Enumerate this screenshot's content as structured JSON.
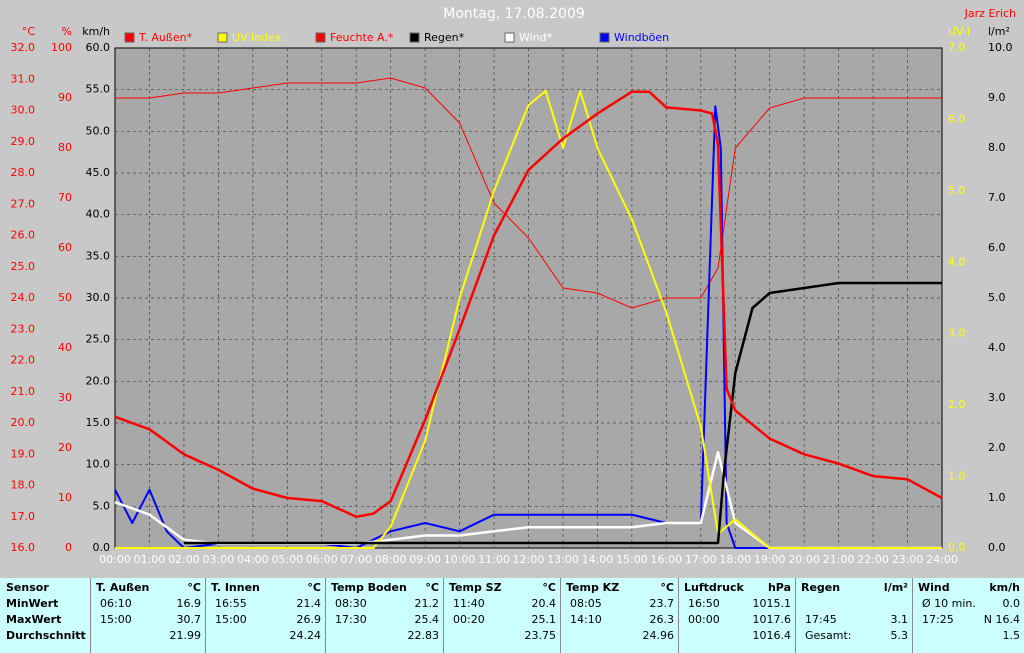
{
  "chart_data": {
    "type": "line",
    "title": "Montag, 17.08.2009",
    "author": "Jarz Erich",
    "axes": [
      {
        "unit": "°C",
        "color": "#ff0000",
        "lim": [
          16,
          32
        ],
        "ticks": [
          {
            "value": 16,
            "label": "16.0"
          },
          {
            "value": 17,
            "label": "17.0"
          },
          {
            "value": 18,
            "label": "18.0"
          },
          {
            "value": 19,
            "label": "19.0"
          },
          {
            "value": 20,
            "label": "20.0"
          },
          {
            "value": 21,
            "label": "21.0"
          },
          {
            "value": 22,
            "label": "22.0"
          },
          {
            "value": 23,
            "label": "23.0"
          },
          {
            "value": 24,
            "label": "24.0"
          },
          {
            "value": 25,
            "label": "25.0"
          },
          {
            "value": 26,
            "label": "26.0"
          },
          {
            "value": 27,
            "label": "27.0"
          },
          {
            "value": 28,
            "label": "28.0"
          },
          {
            "value": 29,
            "label": "29.0"
          },
          {
            "value": 30,
            "label": "30.0"
          },
          {
            "value": 31,
            "label": "31.0"
          },
          {
            "value": 32,
            "label": "32.0"
          }
        ]
      },
      {
        "unit": "%",
        "color": "#ff0000",
        "lim": [
          0,
          100
        ],
        "ticks": [
          0,
          10,
          20,
          30,
          40,
          50,
          60,
          70,
          80,
          90,
          100
        ]
      },
      {
        "unit": "km/h",
        "color": "#000000",
        "lim": [
          0,
          60
        ],
        "ticks": [
          {
            "value": 0,
            "label": "0.0"
          },
          {
            "value": 5,
            "label": "5.0"
          },
          {
            "value": 10,
            "label": "10.0"
          },
          {
            "value": 15,
            "label": "15.0"
          },
          {
            "value": 20,
            "label": "20.0"
          },
          {
            "value": 25,
            "label": "25.0"
          },
          {
            "value": 30,
            "label": "30.0"
          },
          {
            "value": 35,
            "label": "35.0"
          },
          {
            "value": 40,
            "label": "40.0"
          },
          {
            "value": 45,
            "label": "45.0"
          },
          {
            "value": 50,
            "label": "50.0"
          },
          {
            "value": 55,
            "label": "55.0"
          },
          {
            "value": 60,
            "label": "60.0"
          }
        ]
      },
      {
        "unit": "UV-I",
        "color": "#ffff00",
        "lim": [
          0,
          7
        ],
        "ticks": [
          {
            "value": 0,
            "label": "0.0"
          },
          {
            "value": 1,
            "label": "1.0"
          },
          {
            "value": 2,
            "label": "2.0"
          },
          {
            "value": 3,
            "label": "3.0"
          },
          {
            "value": 4,
            "label": "4.0"
          },
          {
            "value": 5,
            "label": "5.0"
          },
          {
            "value": 6,
            "label": "6.0"
          },
          {
            "value": 7,
            "label": "7.0"
          }
        ]
      },
      {
        "unit": "l/m²",
        "color": "#000000",
        "lim": [
          0,
          10
        ],
        "ticks": [
          {
            "value": 0,
            "label": "0.0"
          },
          {
            "value": 1,
            "label": "1.0"
          },
          {
            "value": 2,
            "label": "2.0"
          },
          {
            "value": 3,
            "label": "3.0"
          },
          {
            "value": 4,
            "label": "4.0"
          },
          {
            "value": 5,
            "label": "5.0"
          },
          {
            "value": 6,
            "label": "6.0"
          },
          {
            "value": 7,
            "label": "7.0"
          },
          {
            "value": 8,
            "label": "8.0"
          },
          {
            "value": 9,
            "label": "9.0"
          },
          {
            "value": 10,
            "label": "10.0"
          }
        ]
      }
    ],
    "xlim": [
      0,
      24
    ],
    "xticks": [
      {
        "value": 0,
        "label": "00:00"
      },
      {
        "value": 1,
        "label": "01:00"
      },
      {
        "value": 2,
        "label": "02:00"
      },
      {
        "value": 3,
        "label": "03:00"
      },
      {
        "value": 4,
        "label": "04:00"
      },
      {
        "value": 5,
        "label": "05:00"
      },
      {
        "value": 6,
        "label": "06:00"
      },
      {
        "value": 7,
        "label": "07:00"
      },
      {
        "value": 8,
        "label": "08:00"
      },
      {
        "value": 9,
        "label": "09:00"
      },
      {
        "value": 10,
        "label": "10:00"
      },
      {
        "value": 11,
        "label": "11:00"
      },
      {
        "value": 12,
        "label": "12:00"
      },
      {
        "value": 13,
        "label": "13:00"
      },
      {
        "value": 14,
        "label": "14:00"
      },
      {
        "value": 15,
        "label": "15:00"
      },
      {
        "value": 16,
        "label": "16:00"
      },
      {
        "value": 17,
        "label": "17:00"
      },
      {
        "value": 18,
        "label": "18:00"
      },
      {
        "value": 19,
        "label": "19:00"
      },
      {
        "value": 20,
        "label": "20:00"
      },
      {
        "value": 21,
        "label": "21:00"
      },
      {
        "value": 22,
        "label": "22:00"
      },
      {
        "value": 23,
        "label": "23:00"
      },
      {
        "value": 24,
        "label": "24:00"
      }
    ],
    "grid": true,
    "series": [
      {
        "name": "T. Außen*",
        "color": "#ff0000",
        "axis": "°C",
        "width": 2.5,
        "x": [
          0,
          1,
          2,
          3,
          4,
          5,
          6,
          7,
          7.5,
          8,
          9,
          10,
          11,
          12,
          13,
          14,
          15,
          15.5,
          16,
          17,
          17.33,
          17.5,
          17.75,
          18,
          19,
          20,
          21,
          22,
          23,
          24
        ],
        "values": [
          20.2,
          19.8,
          19,
          18.5,
          17.9,
          17.6,
          17.5,
          17,
          17.1,
          17.5,
          20.1,
          23,
          26,
          28.1,
          29.1,
          29.9,
          30.6,
          30.6,
          30.1,
          30,
          29.9,
          28.9,
          21.1,
          20.4,
          19.5,
          19,
          18.7,
          18.3,
          18.2,
          17.6
        ]
      },
      {
        "name": "UV Index",
        "color": "#ffff00",
        "axis": "UV-I",
        "width": 2,
        "x": [
          0,
          7.5,
          8,
          9,
          10,
          11,
          12,
          12.5,
          13,
          13.5,
          14,
          15,
          16,
          17,
          17.5,
          18,
          19,
          24
        ],
        "values": [
          0,
          0,
          0.3,
          1.5,
          3.5,
          5,
          6.2,
          6.4,
          5.6,
          6.4,
          5.6,
          4.6,
          3.3,
          1.7,
          0.2,
          0.4,
          0,
          0
        ]
      },
      {
        "name": "Feuchte A.*",
        "color": "#ff0000",
        "axis": "%",
        "width": 1,
        "x": [
          0,
          1,
          2,
          3,
          4,
          5,
          6,
          7,
          8,
          9,
          10,
          11,
          12,
          13,
          14,
          15,
          16,
          17,
          17.5,
          18,
          19,
          20,
          21,
          22,
          23,
          24
        ],
        "values": [
          90,
          90,
          91,
          91,
          92,
          93,
          93,
          93,
          94,
          92,
          85,
          69,
          62,
          52,
          51,
          48,
          50,
          50,
          56,
          80,
          88,
          90,
          90,
          90,
          90,
          90
        ]
      },
      {
        "name": "Regen*",
        "color": "#000000",
        "axis": "l/m²",
        "width": 2.5,
        "x": [
          2,
          17.5,
          17.67,
          18,
          18.5,
          19,
          20,
          21,
          24
        ],
        "values": [
          0.1,
          0.1,
          1.5,
          3.5,
          4.8,
          5.1,
          5.2,
          5.3,
          5.3
        ]
      },
      {
        "name": "Wind*",
        "color": "#ffffff",
        "axis": "km/h",
        "width": 2.5,
        "x": [
          0,
          1,
          2,
          3,
          4,
          5,
          6,
          7,
          8,
          9,
          10,
          11,
          12,
          13,
          14,
          15,
          16,
          17,
          17.5,
          18,
          19,
          24
        ],
        "values": [
          5.5,
          4,
          1,
          0.5,
          0.5,
          0.5,
          0.5,
          0.5,
          1,
          1.5,
          1.5,
          2,
          2.5,
          2.5,
          2.5,
          2.5,
          3,
          3,
          11.5,
          3,
          0,
          0
        ]
      },
      {
        "name": "Windböen",
        "color": "#0000ff",
        "axis": "km/h",
        "width": 2,
        "x": [
          0,
          0.5,
          1,
          1.5,
          2,
          3,
          4,
          5,
          6,
          7,
          8,
          9,
          10,
          11,
          12,
          13,
          14,
          15,
          16,
          17,
          17.42,
          17.58,
          17.75,
          18,
          24
        ],
        "values": [
          7,
          3,
          7,
          2,
          0,
          0.5,
          0.5,
          0.5,
          0.5,
          0,
          2,
          3,
          2,
          4,
          4,
          4,
          4,
          4,
          3,
          3,
          53,
          48,
          3,
          0,
          0
        ]
      }
    ]
  },
  "table": {
    "row_labels": [
      "Sensor",
      "MinWert",
      "MaxWert",
      "Durchschnitt"
    ],
    "groups": [
      {
        "name": "T. Außen",
        "unit": "°C",
        "cells": [
          [
            "06:10",
            "16.9"
          ],
          [
            "15:00",
            "30.7"
          ],
          [
            null,
            "21.99"
          ]
        ]
      },
      {
        "name": "T. Innen",
        "unit": "°C",
        "cells": [
          [
            "16:55",
            "21.4"
          ],
          [
            "15:00",
            "26.9"
          ],
          [
            null,
            "24.24"
          ]
        ]
      },
      {
        "name": "Temp Boden",
        "unit": "°C",
        "cells": [
          [
            "08:30",
            "21.2"
          ],
          [
            "17:30",
            "25.4"
          ],
          [
            null,
            "22.83"
          ]
        ]
      },
      {
        "name": "Temp SZ",
        "unit": "°C",
        "cells": [
          [
            "11:40",
            "20.4"
          ],
          [
            "00:20",
            "25.1"
          ],
          [
            null,
            "23.75"
          ]
        ]
      },
      {
        "name": "Temp KZ",
        "unit": "°C",
        "cells": [
          [
            "08:05",
            "23.7"
          ],
          [
            "14:10",
            "26.3"
          ],
          [
            null,
            "24.96"
          ]
        ]
      },
      {
        "name": "Luftdruck",
        "unit": "hPa",
        "cells": [
          [
            "16:50",
            "1015.1"
          ],
          [
            "00:00",
            "1017.6"
          ],
          [
            null,
            "1016.4"
          ]
        ]
      },
      {
        "name": "Regen",
        "unit": "l/m²",
        "cells": [
          [
            null,
            null
          ],
          [
            "17:45",
            "3.1"
          ],
          [
            "Gesamt:",
            "5.3"
          ]
        ]
      },
      {
        "name": "Wind",
        "unit": "km/h",
        "cells": [
          [
            "Ø 10 min.",
            "0.0"
          ],
          [
            "17:25",
            "N 16.4"
          ],
          [
            null,
            "1.5"
          ]
        ]
      }
    ]
  }
}
